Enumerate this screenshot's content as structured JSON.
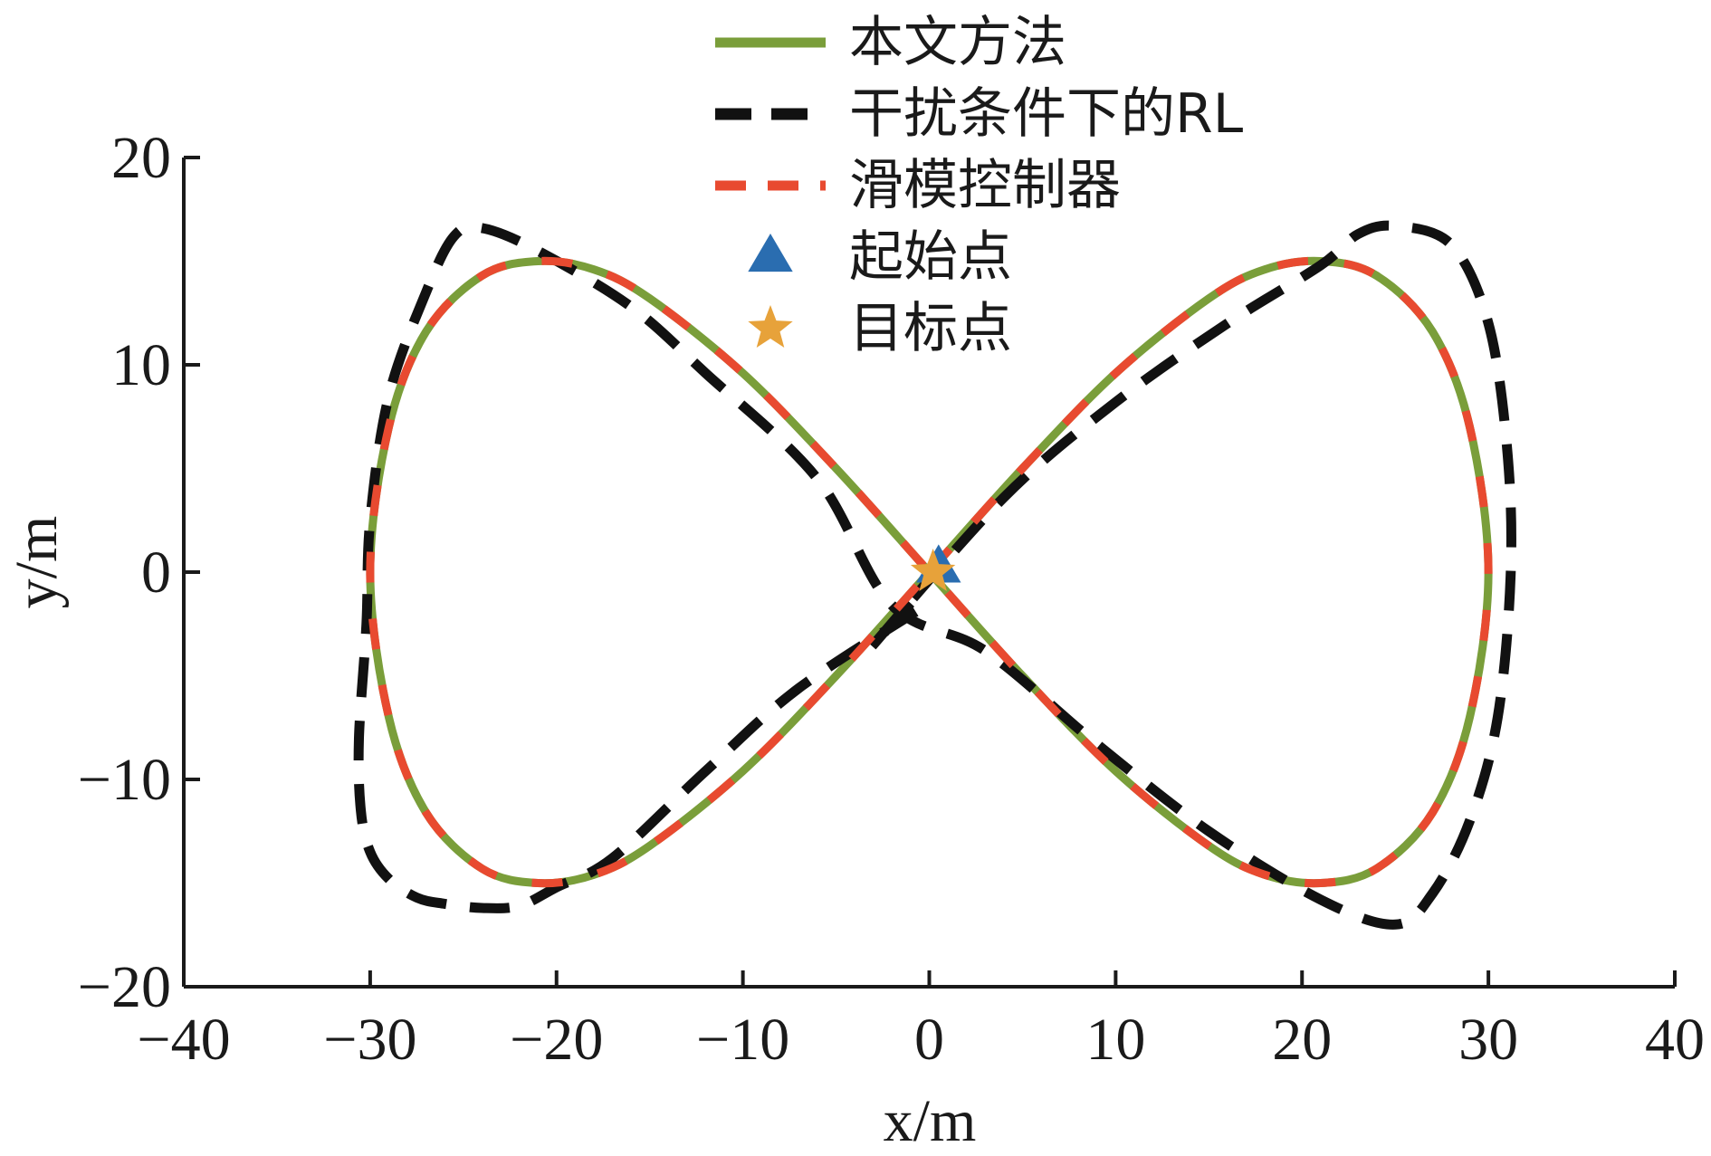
{
  "chart_data": {
    "type": "line",
    "xlabel": "x/m",
    "ylabel": "y/m",
    "xlim": [
      -40,
      40
    ],
    "ylim": [
      -20,
      20
    ],
    "xticks": [
      -40,
      -30,
      -20,
      -10,
      0,
      10,
      20,
      30,
      40
    ],
    "yticks": [
      -20,
      -10,
      0,
      10,
      20
    ],
    "xtick_labels": [
      "−40",
      "−30",
      "−20",
      "−10",
      "0",
      "10",
      "20",
      "30",
      "40"
    ],
    "ytick_labels": [
      "−20",
      "−10",
      "0",
      "10",
      "20"
    ],
    "legend_position": "top-center",
    "grid": false,
    "series": [
      {
        "name": "本文方法",
        "color": "#7a9e3a",
        "style": "solid",
        "x": [
          0,
          5,
          10,
          15,
          18,
          21,
          24,
          27,
          29,
          30,
          29,
          27,
          24,
          21,
          18,
          15,
          10,
          5,
          0,
          -5,
          -10,
          -15,
          -18,
          -21,
          -24,
          -27,
          -29,
          -30,
          -29,
          -27,
          -24,
          -21,
          -18,
          -15,
          -10,
          -5,
          0
        ],
        "y": [
          0,
          5.0,
          9.6,
          13.2,
          14.6,
          15.0,
          14.3,
          11.6,
          7.0,
          0,
          -7.0,
          -11.6,
          -14.3,
          -15.0,
          -14.6,
          -13.2,
          -9.6,
          -5.0,
          0,
          5.0,
          9.6,
          13.2,
          14.6,
          15.0,
          14.3,
          11.6,
          7.0,
          0,
          -7.0,
          -11.6,
          -14.3,
          -15.0,
          -14.6,
          -13.2,
          -9.6,
          -5.0,
          0
        ]
      },
      {
        "name": "干扰条件下的RL",
        "color": "#111111",
        "style": "dashed",
        "x": [
          -1,
          -3,
          4,
          10,
          16,
          21,
          23,
          25,
          28,
          30,
          31,
          31.2,
          30.5,
          29,
          27,
          25,
          21,
          15,
          9,
          3,
          -2,
          -6,
          -12,
          -16,
          -21,
          -24,
          -25.5,
          -27,
          -29,
          -30,
          -30.2,
          -30.6,
          -30.5,
          -30,
          -29,
          -27.5,
          -26,
          -24,
          -22,
          -20,
          -17,
          -12,
          -7,
          0
        ],
        "y": [
          -1.5,
          -3.5,
          3.6,
          8.2,
          12.0,
          14.8,
          16.3,
          16.7,
          15.8,
          12.0,
          6.0,
          0,
          -7.0,
          -12.0,
          -15.5,
          -17.0,
          -15.8,
          -12.5,
          -8.3,
          -3.8,
          -1.6,
          4.5,
          9.6,
          12.8,
          15.5,
          16.6,
          16.2,
          13.5,
          8.5,
          2.5,
          -2.5,
          -8.0,
          -11.5,
          -13.5,
          -14.8,
          -15.7,
          -16.0,
          -16.2,
          -16.1,
          -15.2,
          -13.8,
          -9.6,
          -5.6,
          -1.5
        ]
      },
      {
        "name": "滑模控制器",
        "color": "#e84a30",
        "style": "dashed",
        "x": [
          0,
          5,
          10,
          15,
          18,
          21,
          24,
          27,
          29,
          30,
          29,
          27,
          24,
          21,
          18,
          15,
          10,
          5,
          0,
          -5,
          -10,
          -15,
          -18,
          -21,
          -24,
          -27,
          -29,
          -30,
          -29,
          -27,
          -24,
          -21,
          -18,
          -15,
          -10,
          -5,
          0
        ],
        "y": [
          0,
          5.0,
          9.6,
          13.2,
          14.6,
          15.0,
          14.3,
          11.6,
          7.0,
          0,
          -7.0,
          -11.6,
          -14.3,
          -15.0,
          -14.6,
          -13.2,
          -9.6,
          -5.0,
          0,
          5.0,
          9.6,
          13.2,
          14.6,
          15.0,
          14.3,
          11.6,
          7.0,
          0,
          -7.0,
          -11.6,
          -14.3,
          -15.0,
          -14.6,
          -13.2,
          -9.6,
          -5.0,
          0
        ]
      }
    ],
    "markers": [
      {
        "name": "起始点",
        "shape": "triangle",
        "color": "#2a6db0",
        "x": 0.5,
        "y": 0.2
      },
      {
        "name": "目标点",
        "shape": "star",
        "color": "#e7a23a",
        "x": 0.2,
        "y": 0
      }
    ]
  }
}
